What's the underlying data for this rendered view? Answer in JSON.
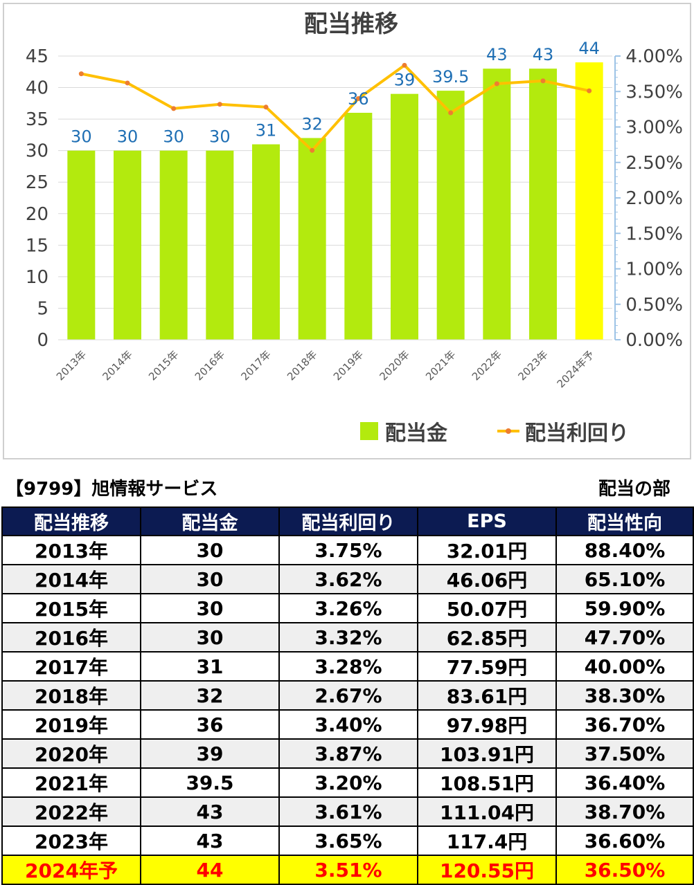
{
  "chart_data": {
    "type": "bar+line",
    "title": "配当推移",
    "categories": [
      "2013年",
      "2014年",
      "2015年",
      "2016年",
      "2017年",
      "2018年",
      "2019年",
      "2020年",
      "2021年",
      "2022年",
      "2023年",
      "2024年予"
    ],
    "series": [
      {
        "name": "配当金",
        "type": "bar",
        "axis": "left",
        "color": "#b3ea0e",
        "highlight_color": "#ffff00",
        "values": [
          30,
          30,
          30,
          30,
          31,
          32,
          36,
          39,
          39.5,
          43,
          43,
          44
        ],
        "labels": [
          "30",
          "30",
          "30",
          "30",
          "31",
          "32",
          "36",
          "39",
          "39.5",
          "43",
          "43",
          "44"
        ]
      },
      {
        "name": "配当利回り",
        "type": "line",
        "axis": "right",
        "color": "#ffc000",
        "marker_color": "#ed7d31",
        "values": [
          3.75,
          3.62,
          3.26,
          3.32,
          3.28,
          2.67,
          3.4,
          3.87,
          3.2,
          3.61,
          3.65,
          3.51
        ]
      }
    ],
    "y_left": {
      "min": 0,
      "max": 45,
      "step": 5,
      "ticks": [
        "0",
        "5",
        "10",
        "15",
        "20",
        "25",
        "30",
        "35",
        "40",
        "45"
      ]
    },
    "y_right": {
      "min": 0,
      "max": 4,
      "step": 0.5,
      "ticks": [
        "0.00%",
        "0.50%",
        "1.00%",
        "1.50%",
        "2.00%",
        "2.50%",
        "3.00%",
        "3.50%",
        "4.00%"
      ]
    },
    "grid": true,
    "legend_position": "bottom-right",
    "label_color": "#1f6fb4",
    "axis_color": "#9dc3e6"
  },
  "caption": {
    "company": "【9799】旭情報サービス",
    "section": "配当の部"
  },
  "table": {
    "header_bg": "#0c1b52",
    "headers": [
      "配当推移",
      "配当金",
      "配当利回り",
      "EPS",
      "配当性向"
    ],
    "rows": [
      [
        "2013年",
        "30",
        "3.75%",
        "32.01円",
        "88.40%"
      ],
      [
        "2014年",
        "30",
        "3.62%",
        "46.06円",
        "65.10%"
      ],
      [
        "2015年",
        "30",
        "3.26%",
        "50.07円",
        "59.90%"
      ],
      [
        "2016年",
        "30",
        "3.32%",
        "62.85円",
        "47.70%"
      ],
      [
        "2017年",
        "31",
        "3.28%",
        "77.59円",
        "40.00%"
      ],
      [
        "2018年",
        "32",
        "2.67%",
        "83.61円",
        "38.30%"
      ],
      [
        "2019年",
        "36",
        "3.40%",
        "97.98円",
        "36.70%"
      ],
      [
        "2020年",
        "39",
        "3.87%",
        "103.91円",
        "37.50%"
      ],
      [
        "2021年",
        "39.5",
        "3.20%",
        "108.51円",
        "36.40%"
      ],
      [
        "2022年",
        "43",
        "3.61%",
        "111.04円",
        "38.70%"
      ],
      [
        "2023年",
        "43",
        "3.65%",
        "117.4円",
        "36.60%"
      ],
      [
        "2024年予",
        "44",
        "3.51%",
        "120.55円",
        "36.50%"
      ]
    ]
  }
}
